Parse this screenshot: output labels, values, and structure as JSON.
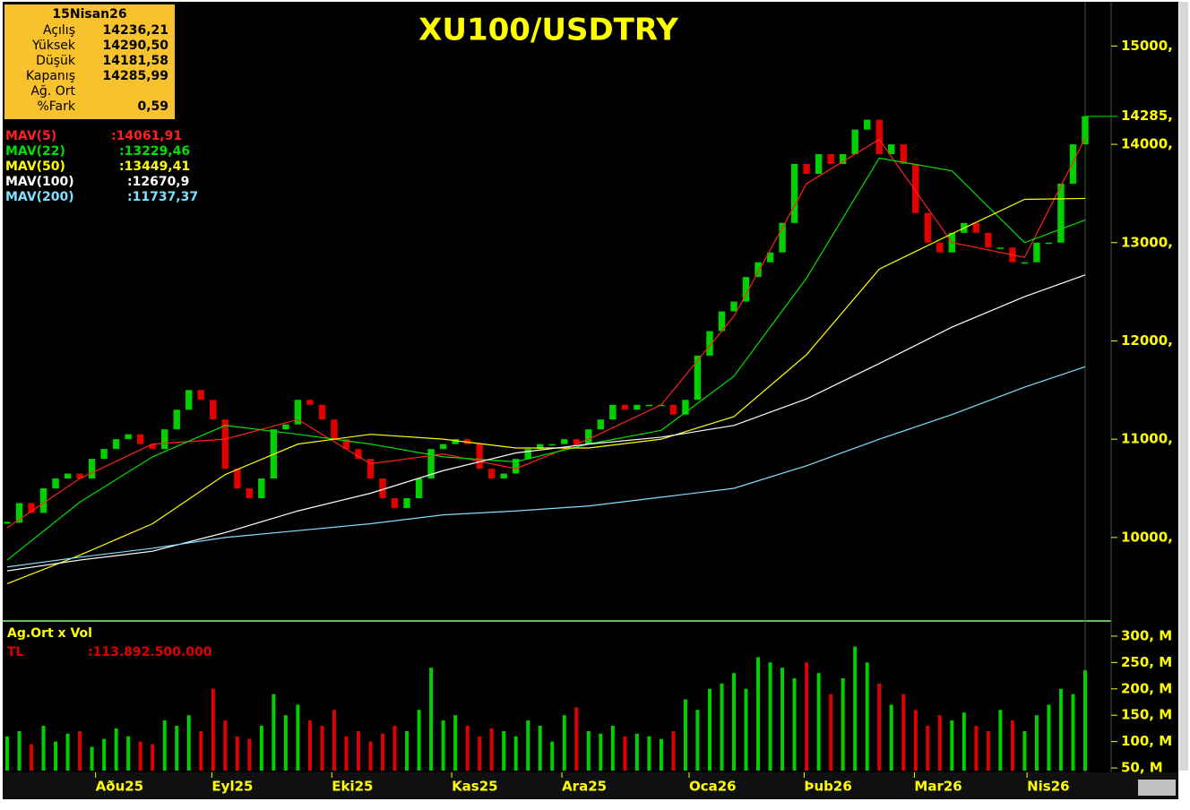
{
  "chart_data": {
    "type": "candlestick",
    "title": "XU100/USDTRY",
    "info": {
      "date": "15Nisan26",
      "rows": [
        {
          "label": "Açılış",
          "value": "14236,21"
        },
        {
          "label": "Yüksek",
          "value": "14290,50"
        },
        {
          "label": "Düşük",
          "value": "14181,58"
        },
        {
          "label": "Kapanış",
          "value": "14285,99"
        },
        {
          "label": "Ağ. Ort"
        },
        {
          "label": "%Fark",
          "value": "0,59"
        }
      ]
    },
    "up_color": "#00d000",
    "down_color": "#e00000",
    "close": [
      10150,
      10350,
      10250,
      10500,
      10600,
      10650,
      10600,
      10800,
      10900,
      11000,
      11050,
      10950,
      10900,
      11100,
      11300,
      11500,
      11400,
      11200,
      10700,
      10500,
      10400,
      10600,
      11100,
      11150,
      11400,
      11350,
      11200,
      11000,
      10900,
      10800,
      10600,
      10400,
      10300,
      10400,
      10600,
      10900,
      10950,
      11000,
      10950,
      10700,
      10600,
      10650,
      10800,
      10900,
      10950,
      10950,
      11000,
      10950,
      11100,
      11200,
      11350,
      11300,
      11350,
      11350,
      11350,
      11250,
      11400,
      11850,
      12100,
      12300,
      12400,
      12650,
      12800,
      12900,
      13200,
      13800,
      13700,
      13900,
      13800,
      13900,
      14150,
      14250,
      13900,
      14000,
      13800,
      13300,
      13000,
      12900,
      13100,
      13200,
      13100,
      12950,
      12950,
      12800,
      12800,
      13000,
      13000,
      13600,
      14000,
      14285.99
    ],
    "xlim": [
      0,
      89
    ],
    "xticks": [
      {
        "value": 7.3,
        "label": "Aðu25"
      },
      {
        "value": 16.9,
        "label": "Eyl25"
      },
      {
        "value": 26.8,
        "label": "Eki25"
      },
      {
        "value": 36.7,
        "label": "Kas25"
      },
      {
        "value": 45.8,
        "label": "Ara25"
      },
      {
        "value": 56.3,
        "label": "Oca26"
      },
      {
        "value": 65.8,
        "label": "Þub26"
      },
      {
        "value": 74.9,
        "label": "Mar26"
      },
      {
        "value": 84.2,
        "label": "Nis26"
      }
    ],
    "ylim": [
      9160,
      15450
    ],
    "yticks": [
      {
        "value": 10000,
        "label": "10000,"
      },
      {
        "value": 11000,
        "label": "11000,"
      },
      {
        "value": 12000,
        "label": "12000,"
      },
      {
        "value": 13000,
        "label": "13000,"
      },
      {
        "value": 14000,
        "label": "14000,"
      },
      {
        "value": 15000,
        "label": "15000,"
      }
    ],
    "price_marker": {
      "value": 14285.99,
      "label": "14285,"
    },
    "mav_x": [
      0,
      6,
      12,
      18,
      24,
      30,
      36,
      42,
      48,
      54,
      60,
      66,
      72,
      78,
      84,
      89
    ],
    "series": [
      {
        "name": "MAV(5)",
        "legend_value": ":14061,91",
        "color": "#ff2020",
        "values": [
          10100,
          10600,
          10950,
          11000,
          11200,
          10750,
          10850,
          10700,
          11000,
          11350,
          12250,
          13600,
          14050,
          13000,
          12850,
          14061.91
        ]
      },
      {
        "name": "MAV(22)",
        "legend_value": ":13229,46",
        "color": "#00e000",
        "values": [
          9770,
          10360,
          10820,
          11140,
          11050,
          10950,
          10820,
          10770,
          10950,
          11090,
          11640,
          12640,
          13860,
          13730,
          13000,
          13229.46
        ]
      },
      {
        "name": "MAV(50)",
        "legend_value": ":13449,41",
        "color": "#ffff00",
        "values": [
          9530,
          9820,
          10140,
          10640,
          10950,
          11050,
          11000,
          10910,
          10910,
          11000,
          11230,
          11860,
          12730,
          13090,
          13440,
          13449.41
        ]
      },
      {
        "name": "MAV(100)",
        "legend_value": ":12670,9",
        "color": "#ffffff",
        "values": [
          9660,
          9770,
          9860,
          10050,
          10270,
          10450,
          10680,
          10860,
          10950,
          11020,
          11140,
          11410,
          11770,
          12140,
          12450,
          12670.9
        ]
      },
      {
        "name": "MAV(200)",
        "legend_value": ":11737,37",
        "color": "#80e0ff",
        "values": [
          9700,
          9800,
          9890,
          10000,
          10070,
          10140,
          10230,
          10270,
          10320,
          10410,
          10500,
          10730,
          11000,
          11250,
          11530,
          11737.37
        ]
      }
    ],
    "volume": {
      "title": "Ag.Ort x Vol",
      "unit_label": "TL",
      "value_label": ":113.892.500.000",
      "values": [
        110,
        120,
        95,
        130,
        100,
        115,
        120,
        90,
        105,
        125,
        110,
        100,
        95,
        140,
        130,
        150,
        120,
        200,
        140,
        110,
        105,
        130,
        190,
        150,
        170,
        140,
        130,
        160,
        110,
        120,
        100,
        115,
        130,
        120,
        160,
        240,
        140,
        150,
        130,
        110,
        125,
        120,
        110,
        140,
        130,
        100,
        150,
        165,
        120,
        115,
        130,
        110,
        115,
        110,
        105,
        120,
        180,
        160,
        200,
        210,
        230,
        200,
        260,
        250,
        240,
        220,
        250,
        230,
        190,
        220,
        280,
        250,
        210,
        170,
        190,
        160,
        130,
        150,
        140,
        155,
        130,
        120,
        160,
        140,
        120,
        150,
        170,
        200,
        190,
        235
      ],
      "ylim": [
        45,
        322
      ],
      "yticks": [
        {
          "value": 50,
          "label": "50, M"
        },
        {
          "value": 100,
          "label": "100, M"
        },
        {
          "value": 150,
          "label": "150, M"
        },
        {
          "value": 200,
          "label": "200, M"
        },
        {
          "value": 250,
          "label": "250, M"
        },
        {
          "value": 300,
          "label": "300, M"
        }
      ]
    }
  }
}
